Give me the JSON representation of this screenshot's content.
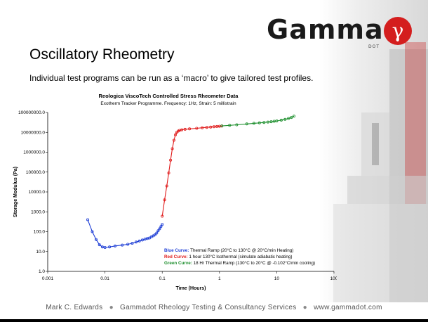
{
  "brand": {
    "name": "Gamma",
    "sub": "DOT",
    "symbol": "γ"
  },
  "colors": {
    "accent": "#d41e1e",
    "blue": "#1f3fd6",
    "red": "#e01b1b",
    "green": "#1e8f2e"
  },
  "title": "Oscillatory Rheometry",
  "subtitle": "Individual test programs can be run as a ‘macro’ to give tailored test profiles.",
  "footer": {
    "author": "Mark C. Edwards",
    "company": "Gammadot Rheology Testing & Consultancy Services",
    "website": "www.gammadot.com"
  },
  "chart_data": {
    "type": "scatter",
    "title": "Reologica ViscoTech Controlled Stress Rheometer Data",
    "subtitle": "Exotherm Tracker Programme. Frequency: 1Hz, Strain: 5 millistrain",
    "xlabel": "Time (Hours)",
    "ylabel": "Storage Modulus (Pa)",
    "xscale": "log",
    "yscale": "log",
    "xlim": [
      0.001,
      100
    ],
    "ylim": [
      1,
      100000000
    ],
    "x_ticks": [
      "0.001",
      "0.01",
      "0.1",
      "1",
      "10",
      "100"
    ],
    "y_ticks": [
      "1.0",
      "10.0",
      "100.0",
      "1000.0",
      "10000.0",
      "100000.0",
      "1000000.0",
      "10000000.0",
      "100000000.0"
    ],
    "grid": false,
    "series": [
      {
        "name": "Blue Curve",
        "color": "#1f3fd6",
        "x": [
          0.005,
          0.006,
          0.007,
          0.008,
          0.009,
          0.01,
          0.012,
          0.015,
          0.02,
          0.025,
          0.03,
          0.035,
          0.04,
          0.045,
          0.05,
          0.055,
          0.06,
          0.065,
          0.07,
          0.075,
          0.08,
          0.085,
          0.09,
          0.095,
          0.1
        ],
        "y": [
          400,
          100,
          40,
          22,
          17,
          16,
          17,
          19,
          21,
          23,
          26,
          30,
          34,
          38,
          42,
          45,
          48,
          55,
          62,
          70,
          85,
          110,
          140,
          180,
          230
        ]
      },
      {
        "name": "Red Curve",
        "color": "#e01b1b",
        "x": [
          0.1,
          0.11,
          0.12,
          0.13,
          0.14,
          0.15,
          0.16,
          0.17,
          0.18,
          0.19,
          0.2,
          0.22,
          0.25,
          0.3,
          0.4,
          0.5,
          0.6,
          0.7,
          0.8,
          0.9,
          1.0,
          1.1
        ],
        "y": [
          600,
          4000,
          20000,
          90000,
          400000,
          1500000,
          4000000,
          7500000,
          10000000,
          11500000,
          12500000,
          13500000,
          14300000,
          15000000,
          16000000,
          17000000,
          17800000,
          18500000,
          19200000,
          19800000,
          20300000,
          20800000
        ]
      },
      {
        "name": "Green Curve",
        "color": "#1e8f2e",
        "x": [
          1.1,
          1.5,
          2,
          3,
          4,
          5,
          6,
          7,
          8,
          9,
          10,
          12,
          14,
          16,
          18,
          20
        ],
        "y": [
          21000000,
          22500000,
          24000000,
          26500000,
          28500000,
          30000000,
          31500000,
          33000000,
          34500000,
          36000000,
          37500000,
          41000000,
          45000000,
          50000000,
          56000000,
          65000000
        ]
      }
    ],
    "legend": {
      "position": "bottom-right",
      "entries": [
        {
          "label": "Blue Curve:",
          "text": "Thermal Ramp (20°C to 130°C @ 20°C/min Heating)",
          "color": "#1f3fd6"
        },
        {
          "label": "Red Curve:",
          "text": "1 hour 130°C Isothermal (simulate adiabatic heating)",
          "color": "#e01b1b"
        },
        {
          "label": "Green Curve:",
          "text": "18 Hr Thermal Ramp (130°C to 20°C @ -0.102°C/min cooling)",
          "color": "#1e8f2e"
        }
      ]
    }
  }
}
